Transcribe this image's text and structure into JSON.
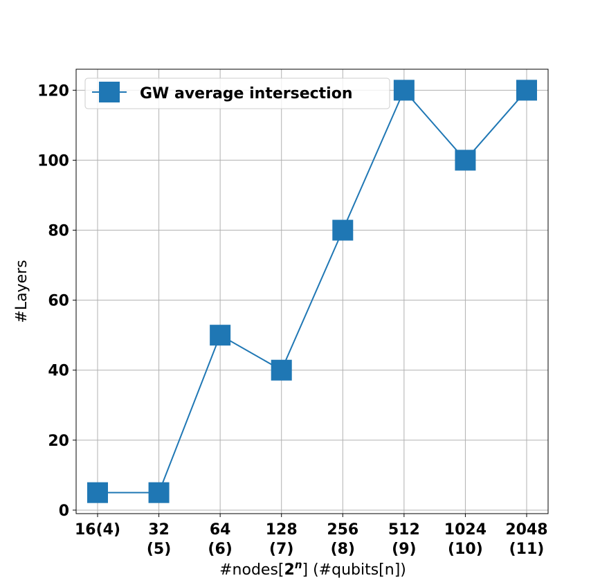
{
  "chart_data": {
    "type": "line",
    "categories": [
      [
        "16(4)"
      ],
      [
        "32",
        "(5)"
      ],
      [
        "64",
        "(6)"
      ],
      [
        "128",
        "(7)"
      ],
      [
        "256",
        "(8)"
      ],
      [
        "512",
        "(9)"
      ],
      [
        "1024",
        "(10)"
      ],
      [
        "2048",
        "(11)"
      ]
    ],
    "series": [
      {
        "name": "GW average intersection",
        "values": [
          5,
          5,
          50,
          40,
          80,
          120,
          100,
          120
        ],
        "color": "#1f77b4",
        "marker": "square"
      }
    ],
    "xlabel_prefix": "#nodes[",
    "xlabel_math": "2",
    "xlabel_sup": "n",
    "xlabel_suffix": "] (#qubits[n])",
    "ylabel": "#Layers",
    "ylim": [
      -1,
      126
    ],
    "yticks": [
      0,
      20,
      40,
      60,
      80,
      100,
      120
    ],
    "grid": true,
    "legend_position": "top-left"
  }
}
